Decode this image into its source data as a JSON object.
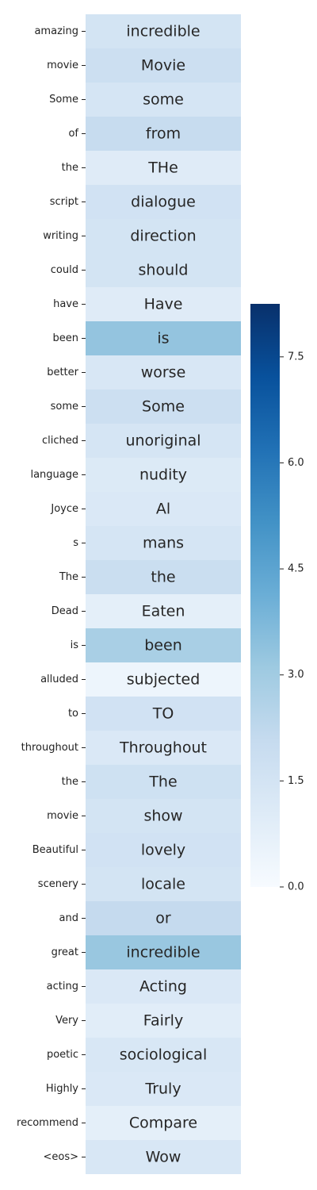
{
  "chart_data": {
    "type": "heatmap",
    "colormap": "Blues",
    "rows": [
      {
        "label": "amazing",
        "token": "incredible",
        "value": 1.5
      },
      {
        "label": "movie",
        "token": "Movie",
        "value": 1.8
      },
      {
        "label": "Some",
        "token": "some",
        "value": 1.4
      },
      {
        "label": "of",
        "token": "from",
        "value": 2.0
      },
      {
        "label": "the",
        "token": "THe",
        "value": 1.0
      },
      {
        "label": "script",
        "token": "dialogue",
        "value": 1.6
      },
      {
        "label": "writing",
        "token": "direction",
        "value": 1.5
      },
      {
        "label": "could",
        "token": "should",
        "value": 1.5
      },
      {
        "label": "have",
        "token": "Have",
        "value": 1.0
      },
      {
        "label": "been",
        "token": "is",
        "value": 3.3
      },
      {
        "label": "better",
        "token": "worse",
        "value": 1.3
      },
      {
        "label": "some",
        "token": "Some",
        "value": 1.8
      },
      {
        "label": "cliched",
        "token": "unoriginal",
        "value": 1.4
      },
      {
        "label": "language",
        "token": "nudity",
        "value": 1.1
      },
      {
        "label": "Joyce",
        "token": "Al",
        "value": 1.2
      },
      {
        "label": "s",
        "token": "mans",
        "value": 1.4
      },
      {
        "label": "The",
        "token": "the",
        "value": 1.9
      },
      {
        "label": "Dead",
        "token": "Eaten",
        "value": 0.8
      },
      {
        "label": "is",
        "token": "been",
        "value": 2.8
      },
      {
        "label": "alluded",
        "token": "subjected",
        "value": 0.4
      },
      {
        "label": "to",
        "token": "TO",
        "value": 1.6
      },
      {
        "label": "throughout",
        "token": "Throughout",
        "value": 1.2
      },
      {
        "label": "the",
        "token": "The",
        "value": 1.7
      },
      {
        "label": "movie",
        "token": "show",
        "value": 1.5
      },
      {
        "label": "Beautiful",
        "token": "lovely",
        "value": 1.6
      },
      {
        "label": "scenery",
        "token": "locale",
        "value": 1.5
      },
      {
        "label": "and",
        "token": "or",
        "value": 2.1
      },
      {
        "label": "great",
        "token": "incredible",
        "value": 3.2
      },
      {
        "label": "acting",
        "token": "Acting",
        "value": 1.2
      },
      {
        "label": "Very",
        "token": "Fairly",
        "value": 0.9
      },
      {
        "label": "poetic",
        "token": "sociological",
        "value": 1.3
      },
      {
        "label": "Highly",
        "token": "Truly",
        "value": 1.2
      },
      {
        "label": "recommend",
        "token": "Compare",
        "value": 0.8
      },
      {
        "label": "<eos>",
        "token": "Wow",
        "value": 1.3
      }
    ],
    "colorbar": {
      "min": 0.0,
      "max": 8.25,
      "ticks": [
        0.0,
        1.5,
        3.0,
        4.5,
        6.0,
        7.5
      ],
      "tick_labels": [
        "0.0",
        "1.5",
        "3.0",
        "4.5",
        "6.0",
        "7.5"
      ]
    }
  }
}
